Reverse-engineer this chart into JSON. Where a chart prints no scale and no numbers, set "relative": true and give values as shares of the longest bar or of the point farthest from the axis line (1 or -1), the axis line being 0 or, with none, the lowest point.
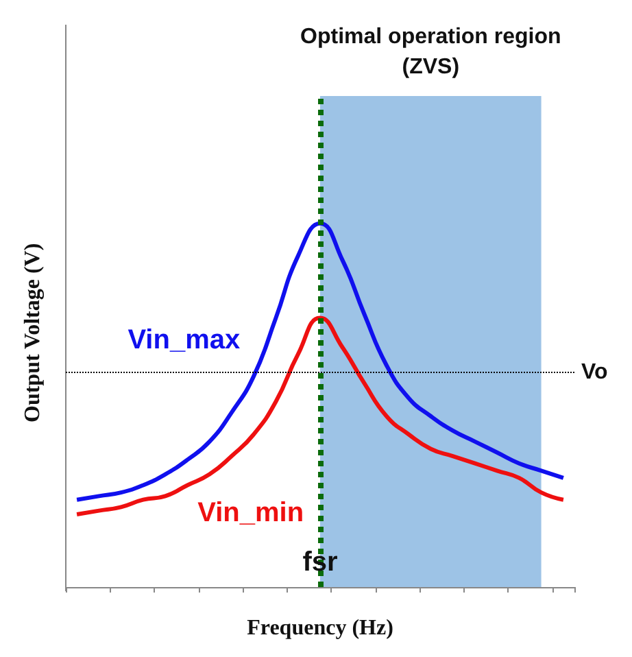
{
  "chart_data": {
    "type": "line",
    "xlabel": "Frequency (Hz)",
    "ylabel": "Output Voltage (V)",
    "relative": true,
    "categories": [
      null,
      null,
      null,
      null,
      null,
      null,
      null,
      null,
      null,
      null,
      null,
      null,
      null,
      null,
      null,
      null,
      null,
      null,
      null,
      null,
      null,
      null,
      null
    ],
    "series": [
      {
        "name": "Vin_max",
        "color": "#1010ee",
        "values": [
          0.24,
          0.25,
          0.26,
          0.28,
          0.31,
          0.35,
          0.4,
          0.48,
          0.58,
          0.74,
          0.91,
          1,
          0.9,
          0.75,
          0.61,
          0.52,
          0.47,
          0.43,
          0.4,
          0.37,
          0.34,
          0.32,
          0.3
        ]
      },
      {
        "name": "Vin_min",
        "color": "#ee1010",
        "values": [
          0.2,
          0.21,
          0.22,
          0.24,
          0.25,
          0.28,
          0.31,
          0.36,
          0.42,
          0.51,
          0.64,
          0.74,
          0.66,
          0.56,
          0.47,
          0.42,
          0.38,
          0.36,
          0.34,
          0.32,
          0.3,
          0.26,
          0.24
        ]
      }
    ],
    "ref_lines": [
      {
        "axis": "y",
        "value": 0.59,
        "label": "Vo",
        "color": "#000000",
        "line_style": "dotted"
      },
      {
        "axis": "x",
        "label": "fsr",
        "color": "#0b6b0b",
        "line_style": "dotted"
      }
    ],
    "annotations": [
      "Optimal operation region\n(ZVS)"
    ],
    "legend": false,
    "grid": false,
    "marker": "none",
    "line_style": "solid"
  }
}
